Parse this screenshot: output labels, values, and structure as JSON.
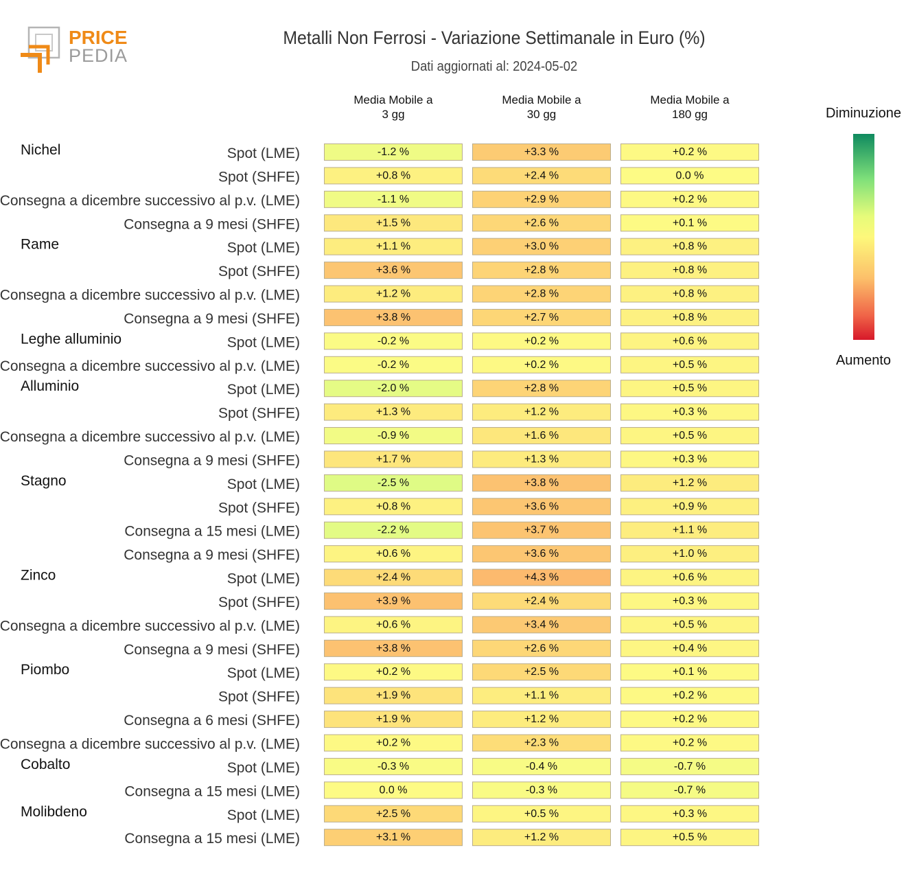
{
  "logo": {
    "line1": "PRICE",
    "line2": "PEDIA",
    "colors": {
      "orange": "#ef8a17",
      "gray": "#9b9b9b"
    }
  },
  "title": "Metalli Non Ferrosi - Variazione Settimanale in Euro (%)",
  "subtitle": "Dati aggiornati al: 2024-05-02",
  "legend": {
    "top_label": "Diminuzione",
    "bottom_label": "Aumento",
    "colors": [
      "#0f8a5f",
      "#7fe07a",
      "#e6fb7a",
      "#fdf87b",
      "#fcc06a",
      "#f06548",
      "#d7192a"
    ]
  },
  "chart_data": {
    "type": "heatmap",
    "title": "Metalli Non Ferrosi - Variazione Settimanale in Euro (%)",
    "columns": [
      "Media Mobile a\n3 gg",
      "Media Mobile a\n30 gg",
      "Media Mobile a\n180 gg"
    ],
    "value_suffix": " %",
    "groups": [
      {
        "name": "Nichel",
        "rows": [
          {
            "label": "Spot (LME)",
            "values": [
              "-1.2",
              "+3.3",
              "+0.2"
            ]
          },
          {
            "label": "Spot (SHFE)",
            "values": [
              "+0.8",
              "+2.4",
              "0.0"
            ]
          },
          {
            "label": "Consegna a dicembre successivo al p.v. (LME)",
            "values": [
              "-1.1",
              "+2.9",
              "+0.2"
            ]
          },
          {
            "label": "Consegna a 9 mesi (SHFE)",
            "values": [
              "+1.5",
              "+2.6",
              "+0.1"
            ]
          }
        ]
      },
      {
        "name": "Rame",
        "rows": [
          {
            "label": "Spot (LME)",
            "values": [
              "+1.1",
              "+3.0",
              "+0.8"
            ]
          },
          {
            "label": "Spot (SHFE)",
            "values": [
              "+3.6",
              "+2.8",
              "+0.8"
            ]
          },
          {
            "label": "Consegna a dicembre successivo al p.v. (LME)",
            "values": [
              "+1.2",
              "+2.8",
              "+0.8"
            ]
          },
          {
            "label": "Consegna a 9 mesi (SHFE)",
            "values": [
              "+3.8",
              "+2.7",
              "+0.8"
            ]
          }
        ]
      },
      {
        "name": "Leghe alluminio",
        "rows": [
          {
            "label": "Spot (LME)",
            "values": [
              "-0.2",
              "+0.2",
              "+0.6"
            ]
          },
          {
            "label": "Consegna a dicembre successivo al p.v. (LME)",
            "values": [
              "-0.2",
              "+0.2",
              "+0.5"
            ]
          }
        ]
      },
      {
        "name": "Alluminio",
        "rows": [
          {
            "label": "Spot (LME)",
            "values": [
              "-2.0",
              "+2.8",
              "+0.5"
            ]
          },
          {
            "label": "Spot (SHFE)",
            "values": [
              "+1.3",
              "+1.2",
              "+0.3"
            ]
          },
          {
            "label": "Consegna a dicembre successivo al p.v. (LME)",
            "values": [
              "-0.9",
              "+1.6",
              "+0.5"
            ]
          },
          {
            "label": "Consegna a 9 mesi (SHFE)",
            "values": [
              "+1.7",
              "+1.3",
              "+0.3"
            ]
          }
        ]
      },
      {
        "name": "Stagno",
        "rows": [
          {
            "label": "Spot (LME)",
            "values": [
              "-2.5",
              "+3.8",
              "+1.2"
            ]
          },
          {
            "label": "Spot (SHFE)",
            "values": [
              "+0.8",
              "+3.6",
              "+0.9"
            ]
          },
          {
            "label": "Consegna a 15 mesi (LME)",
            "values": [
              "-2.2",
              "+3.7",
              "+1.1"
            ]
          },
          {
            "label": "Consegna a 9 mesi (SHFE)",
            "values": [
              "+0.6",
              "+3.6",
              "+1.0"
            ]
          }
        ]
      },
      {
        "name": "Zinco",
        "rows": [
          {
            "label": "Spot (LME)",
            "values": [
              "+2.4",
              "+4.3",
              "+0.6"
            ]
          },
          {
            "label": "Spot (SHFE)",
            "values": [
              "+3.9",
              "+2.4",
              "+0.3"
            ]
          },
          {
            "label": "Consegna a dicembre successivo al p.v. (LME)",
            "values": [
              "+0.6",
              "+3.4",
              "+0.5"
            ]
          },
          {
            "label": "Consegna a 9 mesi (SHFE)",
            "values": [
              "+3.8",
              "+2.6",
              "+0.4"
            ]
          }
        ]
      },
      {
        "name": "Piombo",
        "rows": [
          {
            "label": "Spot (LME)",
            "values": [
              "+0.2",
              "+2.5",
              "+0.1"
            ]
          },
          {
            "label": "Spot (SHFE)",
            "values": [
              "+1.9",
              "+1.1",
              "+0.2"
            ]
          },
          {
            "label": "Consegna a 6 mesi (SHFE)",
            "values": [
              "+1.9",
              "+1.2",
              "+0.2"
            ]
          },
          {
            "label": "Consegna a dicembre successivo al p.v. (LME)",
            "values": [
              "+0.2",
              "+2.3",
              "+0.2"
            ]
          }
        ]
      },
      {
        "name": "Cobalto",
        "rows": [
          {
            "label": "Spot (LME)",
            "values": [
              "-0.3",
              "-0.4",
              "-0.7"
            ]
          },
          {
            "label": "Consegna a 15 mesi (LME)",
            "values": [
              "0.0",
              "-0.3",
              "-0.7"
            ]
          }
        ]
      },
      {
        "name": "Molibdeno",
        "rows": [
          {
            "label": "Spot (LME)",
            "values": [
              "+2.5",
              "+0.5",
              "+0.3"
            ]
          },
          {
            "label": "Consegna a 15 mesi (LME)",
            "values": [
              "+3.1",
              "+1.2",
              "+0.5"
            ]
          }
        ]
      }
    ]
  }
}
